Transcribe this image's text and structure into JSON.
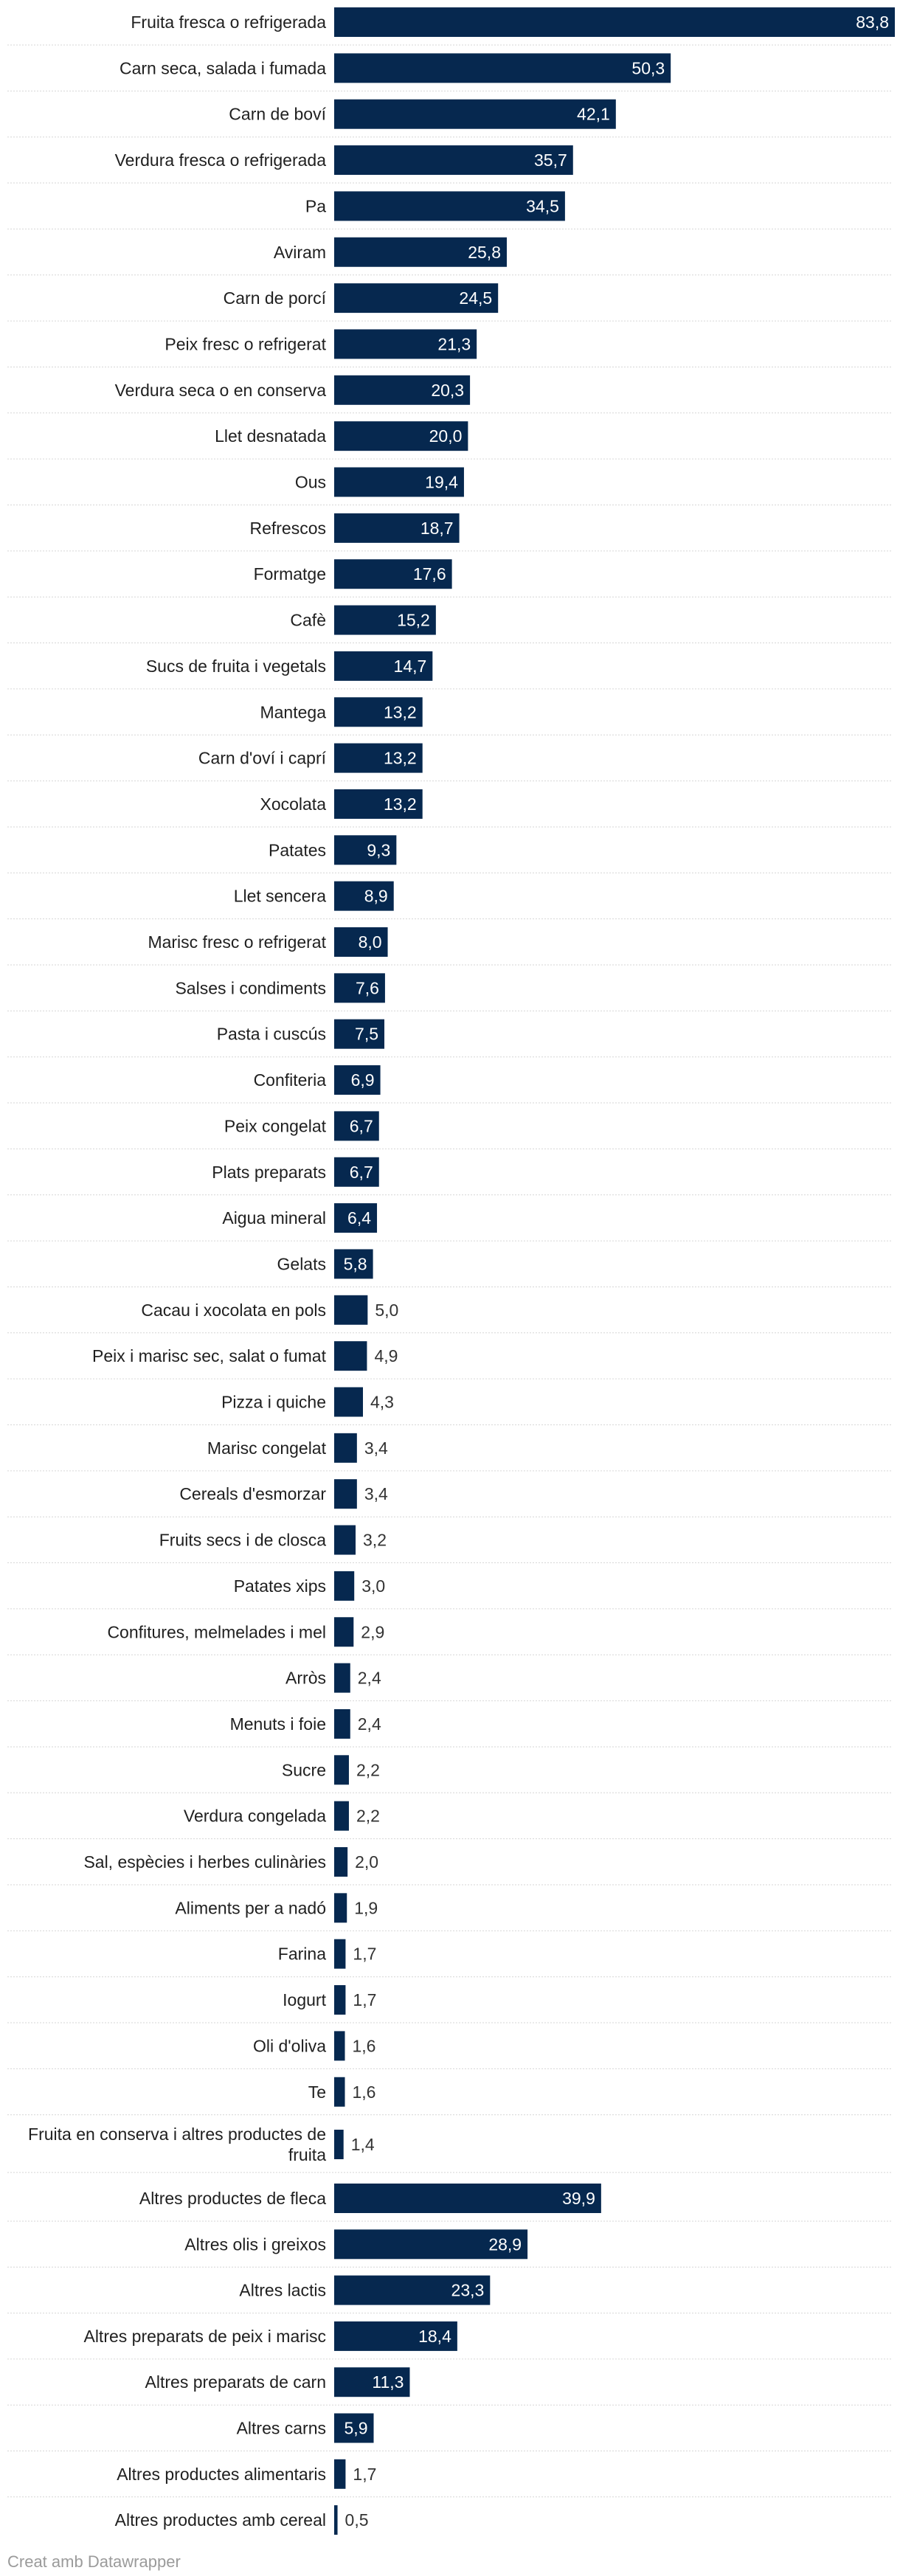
{
  "chart_data": {
    "type": "bar",
    "orientation": "horizontal",
    "bar_color": "#06284f",
    "categories": [
      "Fruita fresca o refrigerada",
      "Carn seca, salada i fumada",
      "Carn de boví",
      "Verdura fresca o refrigerada",
      "Pa",
      "Aviram",
      "Carn de porcí",
      "Peix fresc o refrigerat",
      "Verdura seca o en conserva",
      "Llet desnatada",
      "Ous",
      "Refrescos",
      "Formatge",
      "Cafè",
      "Sucs de fruita i vegetals",
      "Mantega",
      "Carn d'oví i caprí",
      "Xocolata",
      "Patates",
      "Llet sencera",
      "Marisc fresc o refrigerat",
      "Salses i condiments",
      "Pasta i cuscús",
      "Confiteria",
      "Peix congelat",
      "Plats preparats",
      "Aigua mineral",
      "Gelats",
      "Cacau i xocolata en pols",
      "Peix i marisc sec, salat o fumat",
      "Pizza i quiche",
      "Marisc congelat",
      "Cereals d'esmorzar",
      "Fruits secs i de closca",
      "Patates xips",
      "Confitures, melmelades i mel",
      "Arròs",
      "Menuts i foie",
      "Sucre",
      "Verdura congelada",
      "Sal, espècies i herbes culinàries",
      "Aliments per a nadó",
      "Farina",
      "Iogurt",
      "Oli d'oliva",
      "Te",
      "Fruita en conserva i altres productes de fruita",
      "Altres productes de fleca",
      "Altres olis i greixos",
      "Altres lactis",
      "Altres preparats de peix i marisc",
      "Altres preparats de carn",
      "Altres carns",
      "Altres productes alimentaris",
      "Altres productes amb cereal"
    ],
    "values": [
      83.8,
      50.3,
      42.1,
      35.7,
      34.5,
      25.8,
      24.5,
      21.3,
      20.3,
      20.0,
      19.4,
      18.7,
      17.6,
      15.2,
      14.7,
      13.2,
      13.2,
      13.2,
      9.3,
      8.9,
      8.0,
      7.6,
      7.5,
      6.9,
      6.7,
      6.7,
      6.4,
      5.8,
      5.0,
      4.9,
      4.3,
      3.4,
      3.4,
      3.2,
      3.0,
      2.9,
      2.4,
      2.4,
      2.2,
      2.2,
      2.0,
      1.9,
      1.7,
      1.7,
      1.6,
      1.6,
      1.4,
      39.9,
      28.9,
      23.3,
      18.4,
      11.3,
      5.9,
      1.7,
      0.5
    ],
    "value_labels": [
      "83,8",
      "50,3",
      "42,1",
      "35,7",
      "34,5",
      "25,8",
      "24,5",
      "21,3",
      "20,3",
      "20,0",
      "19,4",
      "18,7",
      "17,6",
      "15,2",
      "14,7",
      "13,2",
      "13,2",
      "13,2",
      "9,3",
      "8,9",
      "8,0",
      "7,6",
      "7,5",
      "6,9",
      "6,7",
      "6,7",
      "6,4",
      "5,8",
      "5,0",
      "4,9",
      "4,3",
      "3,4",
      "3,4",
      "3,2",
      "3,0",
      "2,9",
      "2,4",
      "2,4",
      "2,2",
      "2,2",
      "2,0",
      "1,9",
      "1,7",
      "1,7",
      "1,6",
      "1,6",
      "1,4",
      "39,9",
      "28,9",
      "23,3",
      "18,4",
      "11,3",
      "5,9",
      "1,7",
      "0,5"
    ],
    "xlim": [
      0,
      83.8
    ],
    "title": "",
    "xlabel": "",
    "ylabel": ""
  },
  "footer": {
    "credit": "Creat amb Datawrapper"
  }
}
